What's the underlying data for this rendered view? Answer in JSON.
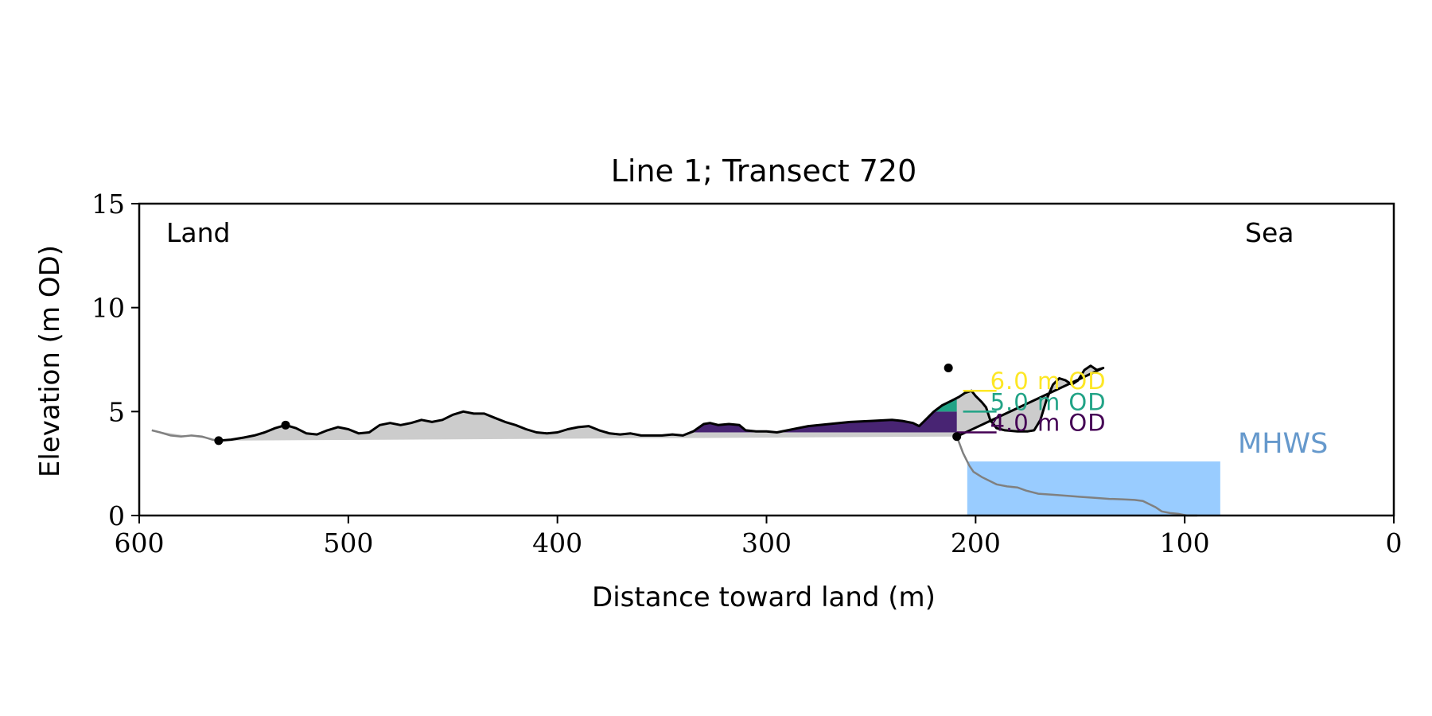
{
  "chart_data": {
    "type": "area",
    "title": "Line 1; Transect 720",
    "xlabel": "Distance toward land (m)",
    "ylabel": "Elevation (m OD)",
    "xlim": [
      600,
      0
    ],
    "ylim": [
      0,
      15
    ],
    "xticks": [
      600,
      500,
      400,
      300,
      200,
      100,
      0
    ],
    "yticks": [
      0,
      5,
      10,
      15
    ],
    "grid": false,
    "annotations": {
      "land": "Land",
      "sea": "Sea",
      "mhws": "MHWS"
    },
    "mhws": {
      "elevation": 2.6,
      "x_from": 204,
      "x_to": 83,
      "color": "#99ccff",
      "label_color": "#6699cc"
    },
    "profile_color": "#000000",
    "seaward_profile_color": "#808080",
    "fill_below_color": "#cccccc",
    "levels": [
      {
        "label": "6.0 m OD",
        "elevation": 6.0,
        "color": "#fde725"
      },
      {
        "label": "5.0 m OD",
        "elevation": 5.0,
        "color": "#21a386"
      },
      {
        "label": "4.0 m OD",
        "elevation": 4.0,
        "color": "#440154"
      }
    ],
    "level_fill_colors": {
      "above_6": "#fde725",
      "5_to_6": "#21a386",
      "4_to_5": "#482473"
    },
    "markers": [
      {
        "x": 562,
        "y": 3.6
      },
      {
        "x": 530,
        "y": 4.35
      },
      {
        "x": 213,
        "y": 7.1
      },
      {
        "x": 209,
        "y": 3.8
      }
    ],
    "profile": [
      [
        594,
        4.1
      ],
      [
        590,
        4.0
      ],
      [
        585,
        3.85
      ],
      [
        580,
        3.8
      ],
      [
        575,
        3.85
      ],
      [
        570,
        3.8
      ],
      [
        565,
        3.65
      ],
      [
        562,
        3.6
      ],
      [
        556,
        3.65
      ],
      [
        550,
        3.75
      ],
      [
        545,
        3.85
      ],
      [
        540,
        4.0
      ],
      [
        535,
        4.2
      ],
      [
        530,
        4.35
      ],
      [
        525,
        4.2
      ],
      [
        520,
        3.95
      ],
      [
        515,
        3.9
      ],
      [
        510,
        4.1
      ],
      [
        505,
        4.25
      ],
      [
        500,
        4.15
      ],
      [
        495,
        3.95
      ],
      [
        490,
        4.0
      ],
      [
        485,
        4.35
      ],
      [
        480,
        4.45
      ],
      [
        475,
        4.35
      ],
      [
        470,
        4.45
      ],
      [
        465,
        4.6
      ],
      [
        460,
        4.5
      ],
      [
        455,
        4.6
      ],
      [
        450,
        4.85
      ],
      [
        445,
        5.0
      ],
      [
        440,
        4.9
      ],
      [
        435,
        4.9
      ],
      [
        430,
        4.7
      ],
      [
        425,
        4.5
      ],
      [
        420,
        4.35
      ],
      [
        415,
        4.15
      ],
      [
        410,
        4.0
      ],
      [
        405,
        3.95
      ],
      [
        400,
        4.0
      ],
      [
        395,
        4.15
      ],
      [
        390,
        4.25
      ],
      [
        385,
        4.3
      ],
      [
        380,
        4.1
      ],
      [
        375,
        3.95
      ],
      [
        370,
        3.9
      ],
      [
        365,
        3.95
      ],
      [
        360,
        3.85
      ],
      [
        355,
        3.85
      ],
      [
        350,
        3.85
      ],
      [
        345,
        3.9
      ],
      [
        340,
        3.85
      ],
      [
        335,
        4.05
      ],
      [
        330,
        4.4
      ],
      [
        327,
        4.45
      ],
      [
        323,
        4.35
      ],
      [
        318,
        4.4
      ],
      [
        313,
        4.35
      ],
      [
        310,
        4.1
      ],
      [
        305,
        4.05
      ],
      [
        300,
        4.05
      ],
      [
        295,
        4.0
      ],
      [
        290,
        4.1
      ],
      [
        285,
        4.2
      ],
      [
        280,
        4.3
      ],
      [
        270,
        4.4
      ],
      [
        260,
        4.5
      ],
      [
        250,
        4.55
      ],
      [
        240,
        4.6
      ],
      [
        235,
        4.55
      ],
      [
        230,
        4.45
      ],
      [
        227,
        4.3
      ],
      [
        224,
        4.6
      ],
      [
        220,
        5.0
      ],
      [
        216,
        5.3
      ],
      [
        212,
        5.5
      ],
      [
        208,
        5.7
      ],
      [
        205,
        5.9
      ],
      [
        202,
        6.0
      ],
      [
        200,
        5.75
      ],
      [
        197,
        5.45
      ],
      [
        195,
        5.2
      ],
      [
        193,
        4.6
      ],
      [
        190,
        4.2
      ],
      [
        186,
        4.1
      ],
      [
        180,
        4.05
      ],
      [
        175,
        4.05
      ],
      [
        172,
        4.1
      ],
      [
        169,
        4.6
      ],
      [
        166,
        5.6
      ],
      [
        163,
        6.3
      ],
      [
        160,
        6.6
      ],
      [
        157,
        6.5
      ],
      [
        154,
        6.3
      ],
      [
        151,
        6.5
      ],
      [
        148,
        7.0
      ],
      [
        145,
        7.2
      ],
      [
        142,
        7.0
      ],
      [
        139,
        7.1
      ]
    ],
    "seaward_profile": [
      [
        209,
        3.8
      ],
      [
        206,
        3.0
      ],
      [
        203,
        2.4
      ],
      [
        201,
        2.1
      ],
      [
        197,
        1.85
      ],
      [
        193,
        1.65
      ],
      [
        190,
        1.5
      ],
      [
        185,
        1.4
      ],
      [
        180,
        1.35
      ],
      [
        176,
        1.2
      ],
      [
        170,
        1.05
      ],
      [
        163,
        1.0
      ],
      [
        156,
        0.95
      ],
      [
        150,
        0.9
      ],
      [
        143,
        0.85
      ],
      [
        136,
        0.8
      ],
      [
        130,
        0.78
      ],
      [
        124,
        0.75
      ],
      [
        120,
        0.7
      ],
      [
        117,
        0.55
      ],
      [
        114,
        0.4
      ],
      [
        111,
        0.2
      ],
      [
        107,
        0.12
      ],
      [
        103,
        0.08
      ],
      [
        99,
        0.0
      ],
      [
        94,
        0.0
      ]
    ]
  }
}
